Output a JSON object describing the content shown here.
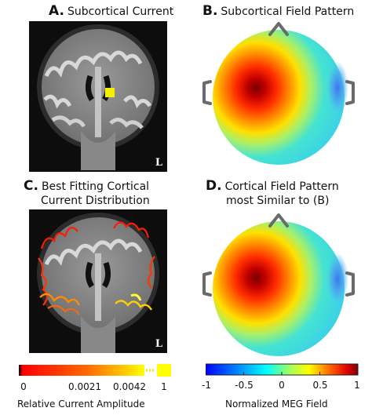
{
  "panels": {
    "a": {
      "letter": "A.",
      "title": "Subcortical Current",
      "corner": "L"
    },
    "b": {
      "letter": "B.",
      "title": "Subcortical Field Pattern"
    },
    "c": {
      "letter": "C.",
      "title_line1": "Best Fitting Cortical",
      "title_line2": "Current Distribution",
      "corner": "L"
    },
    "d": {
      "letter": "D.",
      "title_line1": "Cortical Field Pattern",
      "title_line2": "most Similar to (B)"
    }
  },
  "colorbars": {
    "current": {
      "label": "Relative Current Amplitude",
      "ticks": [
        "0",
        "0.0021",
        "0.0042",
        "1"
      ],
      "colors": [
        "#000000",
        "#ff0000",
        "#ffff00"
      ]
    },
    "field": {
      "label": "Normalized MEG Field",
      "ticks": [
        "-1",
        "-0.5",
        "0",
        "0.5",
        "1"
      ],
      "colors": [
        "#0000ff",
        "#00ffff",
        "#ffff00",
        "#ff0000",
        "#800000"
      ]
    }
  },
  "icons": [
    "nose-marker-icon",
    "left-ear-marker-icon",
    "right-ear-marker-icon"
  ]
}
